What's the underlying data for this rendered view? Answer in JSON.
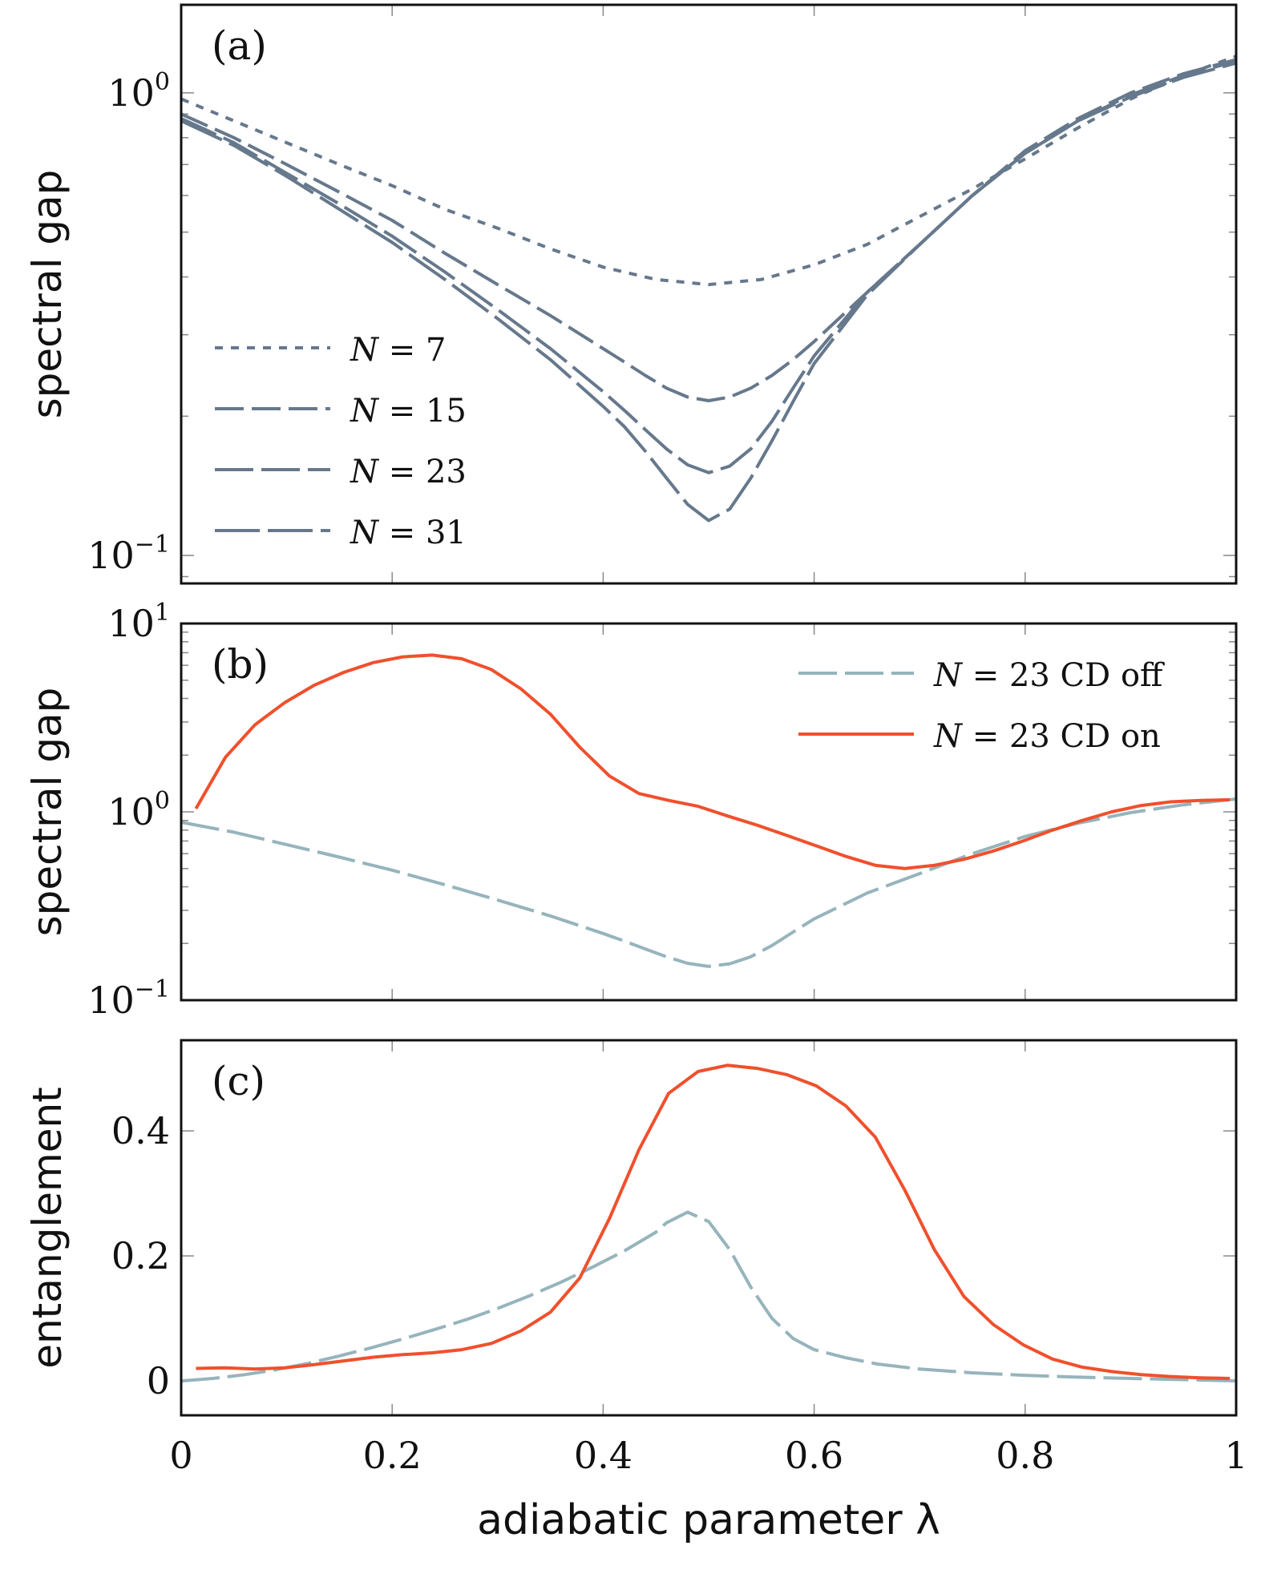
{
  "chart_data": [
    {
      "type": "line",
      "panel_label": "(a)",
      "ylabel": "spectral gap",
      "yscale": "log",
      "ylim": [
        0.087,
        1.55
      ],
      "xlim": [
        0,
        1
      ],
      "yticks": [
        {
          "value": 1,
          "base": "10",
          "exp": "0"
        },
        {
          "value": 0.1,
          "base": "10",
          "exp": "−1"
        }
      ],
      "legend_position": "bottom-left",
      "series": [
        {
          "name_pre": "N",
          "name_post": " = 7",
          "color": "#66788c",
          "dash": "10,10",
          "x": [
            0,
            0.05,
            0.1,
            0.15,
            0.2,
            0.25,
            0.3,
            0.35,
            0.4,
            0.45,
            0.5,
            0.55,
            0.6,
            0.65,
            0.7,
            0.75,
            0.8,
            0.85,
            0.9,
            0.95,
            1.0
          ],
          "y": [
            0.97,
            0.87,
            0.78,
            0.7,
            0.63,
            0.56,
            0.51,
            0.46,
            0.42,
            0.395,
            0.385,
            0.395,
            0.425,
            0.47,
            0.54,
            0.62,
            0.72,
            0.84,
            0.97,
            1.09,
            1.2
          ]
        },
        {
          "name_pre": "N",
          "name_post": " = 15",
          "color": "#66788c",
          "dash": "36,10",
          "x": [
            0,
            0.05,
            0.1,
            0.15,
            0.2,
            0.25,
            0.3,
            0.35,
            0.4,
            0.42,
            0.44,
            0.46,
            0.48,
            0.5,
            0.52,
            0.54,
            0.56,
            0.58,
            0.6,
            0.65,
            0.7,
            0.75,
            0.8,
            0.85,
            0.9,
            0.95,
            1.0
          ],
          "y": [
            0.9,
            0.8,
            0.7,
            0.61,
            0.53,
            0.45,
            0.385,
            0.33,
            0.28,
            0.262,
            0.245,
            0.23,
            0.22,
            0.216,
            0.22,
            0.23,
            0.245,
            0.265,
            0.29,
            0.37,
            0.47,
            0.6,
            0.75,
            0.88,
            1.0,
            1.1,
            1.18
          ]
        },
        {
          "name_pre": "N",
          "name_post": " = 23",
          "color": "#66788c",
          "dash": "48,10",
          "x": [
            0,
            0.05,
            0.1,
            0.15,
            0.2,
            0.25,
            0.3,
            0.35,
            0.4,
            0.42,
            0.44,
            0.46,
            0.48,
            0.5,
            0.52,
            0.54,
            0.56,
            0.58,
            0.6,
            0.65,
            0.7,
            0.75,
            0.8,
            0.85,
            0.9,
            0.95,
            1.0
          ],
          "y": [
            0.88,
            0.78,
            0.67,
            0.575,
            0.49,
            0.41,
            0.34,
            0.28,
            0.226,
            0.206,
            0.187,
            0.17,
            0.157,
            0.151,
            0.156,
            0.17,
            0.195,
            0.23,
            0.27,
            0.37,
            0.47,
            0.6,
            0.74,
            0.87,
            0.99,
            1.09,
            1.17
          ]
        },
        {
          "name_pre": "N",
          "name_post": " = 31",
          "color": "#66788c",
          "dash": "56,10",
          "x": [
            0,
            0.05,
            0.1,
            0.15,
            0.2,
            0.25,
            0.3,
            0.35,
            0.4,
            0.42,
            0.44,
            0.46,
            0.48,
            0.5,
            0.52,
            0.54,
            0.56,
            0.58,
            0.6,
            0.65,
            0.7,
            0.75,
            0.8,
            0.85,
            0.9,
            0.95,
            1.0
          ],
          "y": [
            0.87,
            0.77,
            0.66,
            0.56,
            0.475,
            0.395,
            0.325,
            0.265,
            0.21,
            0.19,
            0.168,
            0.147,
            0.129,
            0.119,
            0.126,
            0.147,
            0.177,
            0.215,
            0.26,
            0.365,
            0.47,
            0.6,
            0.74,
            0.87,
            0.98,
            1.08,
            1.16
          ]
        }
      ]
    },
    {
      "type": "line",
      "panel_label": "(b)",
      "ylabel": "spectral gap",
      "yscale": "log",
      "ylim": [
        0.1,
        10
      ],
      "xlim": [
        0,
        1
      ],
      "yticks": [
        {
          "value": 10,
          "base": "10",
          "exp": "1"
        },
        {
          "value": 1,
          "base": "10",
          "exp": "0"
        },
        {
          "value": 0.1,
          "base": "10",
          "exp": "−1"
        }
      ],
      "legend_position": "top-right",
      "series": [
        {
          "name_pre": "N",
          "name_post": " = 23 CD off",
          "color": "#96b4bc",
          "dash": "48,10",
          "x": [
            0,
            0.05,
            0.1,
            0.15,
            0.2,
            0.25,
            0.3,
            0.35,
            0.4,
            0.42,
            0.44,
            0.46,
            0.48,
            0.5,
            0.52,
            0.54,
            0.56,
            0.58,
            0.6,
            0.65,
            0.7,
            0.75,
            0.8,
            0.85,
            0.9,
            0.95,
            1.0
          ],
          "y": [
            0.88,
            0.78,
            0.67,
            0.575,
            0.49,
            0.41,
            0.34,
            0.28,
            0.226,
            0.206,
            0.187,
            0.17,
            0.157,
            0.151,
            0.156,
            0.17,
            0.195,
            0.23,
            0.27,
            0.37,
            0.47,
            0.6,
            0.74,
            0.87,
            0.99,
            1.09,
            1.17
          ]
        },
        {
          "name_pre": "N",
          "name_post": " = 23 CD on",
          "color": "#f0502d",
          "dash": "",
          "x": [
            0.014,
            0.042,
            0.07,
            0.098,
            0.126,
            0.154,
            0.182,
            0.21,
            0.238,
            0.266,
            0.294,
            0.322,
            0.35,
            0.378,
            0.406,
            0.434,
            0.462,
            0.49,
            0.518,
            0.546,
            0.574,
            0.602,
            0.63,
            0.658,
            0.686,
            0.714,
            0.742,
            0.77,
            0.798,
            0.826,
            0.854,
            0.882,
            0.91,
            0.938,
            0.966,
            0.994
          ],
          "y": [
            1.04,
            1.95,
            2.9,
            3.8,
            4.7,
            5.5,
            6.2,
            6.65,
            6.8,
            6.5,
            5.7,
            4.5,
            3.3,
            2.2,
            1.55,
            1.25,
            1.15,
            1.07,
            0.95,
            0.85,
            0.75,
            0.66,
            0.58,
            0.52,
            0.5,
            0.52,
            0.56,
            0.62,
            0.7,
            0.8,
            0.9,
            1.0,
            1.08,
            1.13,
            1.15,
            1.16
          ]
        }
      ]
    },
    {
      "type": "line",
      "panel_label": "(c)",
      "ylabel": "entanglement",
      "yscale": "linear",
      "ylim": [
        -0.055,
        0.545
      ],
      "xlim": [
        0,
        1
      ],
      "yticks": [
        {
          "value": 0,
          "text": "0"
        },
        {
          "value": 0.2,
          "text": "0.2"
        },
        {
          "value": 0.4,
          "text": "0.4"
        }
      ],
      "xticks": [
        {
          "value": 0,
          "text": "0"
        },
        {
          "value": 0.2,
          "text": "0.2"
        },
        {
          "value": 0.4,
          "text": "0.4"
        },
        {
          "value": 0.6,
          "text": "0.6"
        },
        {
          "value": 0.8,
          "text": "0.8"
        },
        {
          "value": 1,
          "text": "1"
        }
      ],
      "xlabel": "adiabatic parameter λ",
      "series": [
        {
          "name": "N = 23 CD off",
          "color": "#96b4bc",
          "dash": "48,10",
          "x": [
            0,
            0.03,
            0.06,
            0.09,
            0.12,
            0.15,
            0.18,
            0.21,
            0.24,
            0.27,
            0.3,
            0.33,
            0.36,
            0.39,
            0.42,
            0.45,
            0.46,
            0.48,
            0.5,
            0.52,
            0.54,
            0.56,
            0.58,
            0.6,
            0.63,
            0.66,
            0.7,
            0.75,
            0.8,
            0.85,
            0.9,
            0.95,
            1.0
          ],
          "y": [
            0.0,
            0.004,
            0.01,
            0.018,
            0.028,
            0.04,
            0.053,
            0.067,
            0.082,
            0.098,
            0.116,
            0.136,
            0.158,
            0.182,
            0.208,
            0.238,
            0.253,
            0.27,
            0.255,
            0.21,
            0.15,
            0.1,
            0.068,
            0.05,
            0.037,
            0.027,
            0.019,
            0.013,
            0.009,
            0.006,
            0.004,
            0.002,
            0.0
          ]
        },
        {
          "name": "N = 23 CD on",
          "color": "#f0502d",
          "dash": "",
          "x": [
            0.014,
            0.042,
            0.07,
            0.098,
            0.126,
            0.154,
            0.182,
            0.21,
            0.238,
            0.266,
            0.294,
            0.322,
            0.35,
            0.378,
            0.406,
            0.434,
            0.462,
            0.49,
            0.518,
            0.546,
            0.574,
            0.602,
            0.63,
            0.658,
            0.686,
            0.714,
            0.742,
            0.77,
            0.798,
            0.826,
            0.854,
            0.882,
            0.91,
            0.938,
            0.966,
            0.994
          ],
          "y": [
            0.02,
            0.021,
            0.019,
            0.021,
            0.026,
            0.032,
            0.038,
            0.042,
            0.045,
            0.05,
            0.06,
            0.08,
            0.11,
            0.165,
            0.26,
            0.37,
            0.46,
            0.495,
            0.505,
            0.5,
            0.49,
            0.472,
            0.44,
            0.39,
            0.305,
            0.21,
            0.135,
            0.09,
            0.058,
            0.035,
            0.022,
            0.015,
            0.01,
            0.007,
            0.005,
            0.004
          ]
        }
      ]
    }
  ]
}
